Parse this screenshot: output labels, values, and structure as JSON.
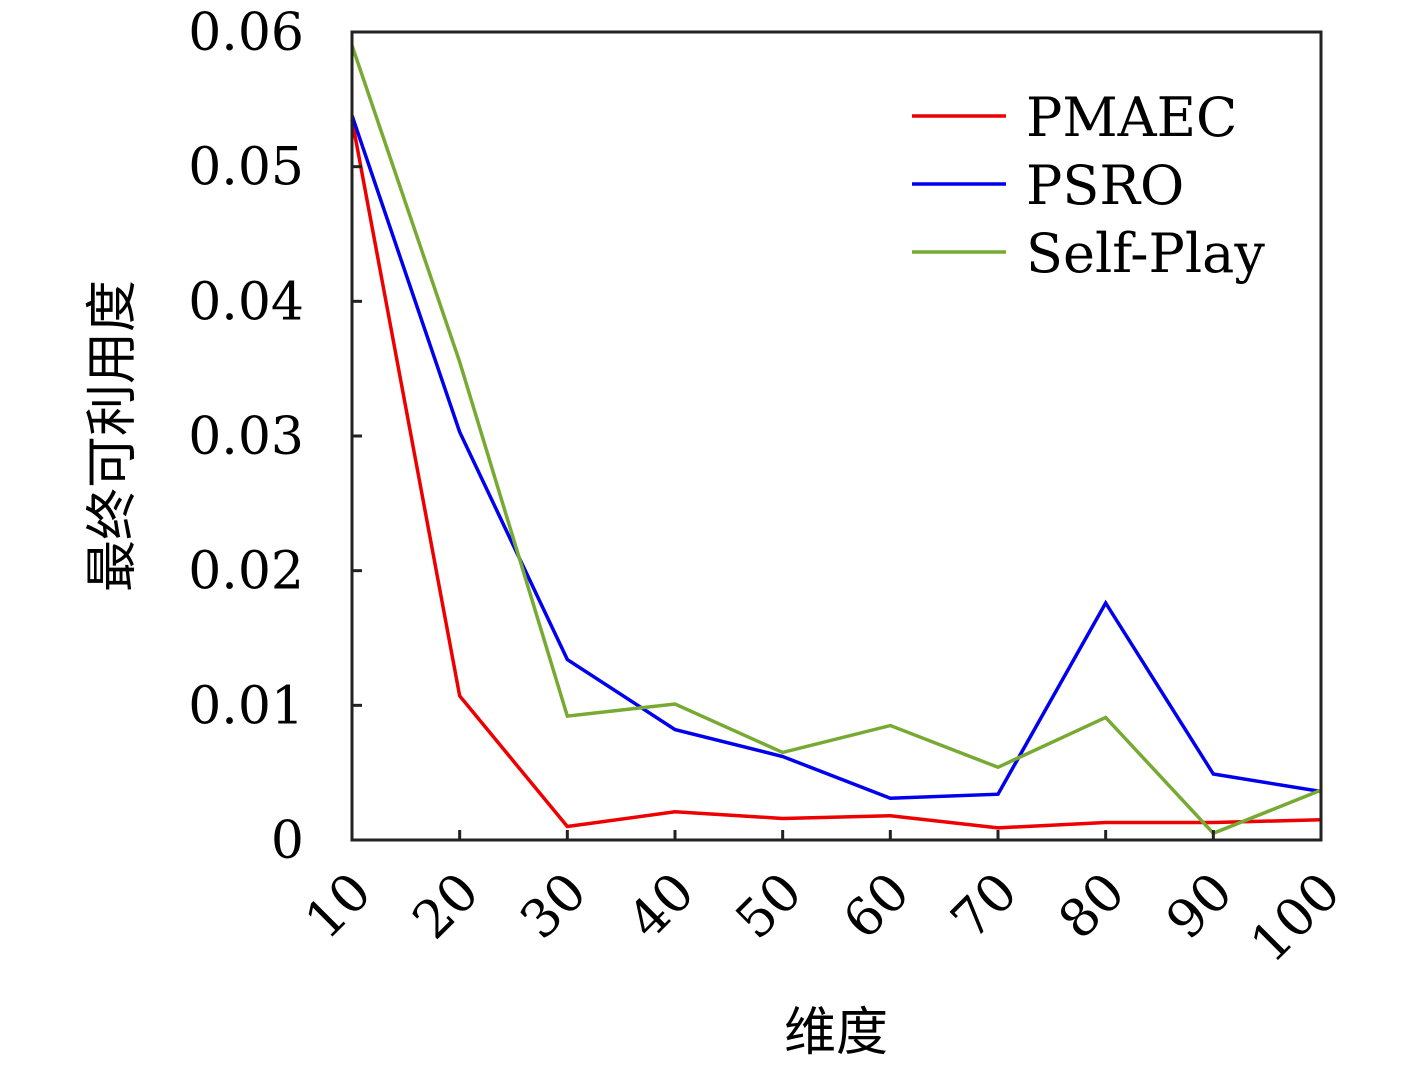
{
  "chart_data": {
    "type": "line",
    "title": "",
    "xlabel": "维度",
    "ylabel": "最终可利用度",
    "x": [
      10,
      20,
      30,
      40,
      50,
      60,
      70,
      80,
      90,
      100
    ],
    "x_tick_labels": [
      "10",
      "20",
      "30",
      "40",
      "50",
      "60",
      "70",
      "80",
      "90",
      "100"
    ],
    "xlim": [
      10,
      100
    ],
    "ylim": [
      0,
      0.06
    ],
    "y_ticks": [
      0,
      0.01,
      0.02,
      0.03,
      0.04,
      0.05,
      0.06
    ],
    "y_tick_labels": [
      "0",
      "0.01",
      "0.02",
      "0.03",
      "0.04",
      "0.05",
      "0.06"
    ],
    "grid": false,
    "legend_position": "top-right",
    "series": [
      {
        "name": "PMAEC",
        "color": "#ee0000",
        "values": [
          0.0535,
          0.0107,
          0.001,
          0.0021,
          0.0016,
          0.0018,
          0.0009,
          0.0013,
          0.0013,
          0.0015
        ]
      },
      {
        "name": "PSRO",
        "color": "#0000ee",
        "values": [
          0.0538,
          0.0303,
          0.0134,
          0.0082,
          0.0062,
          0.0031,
          0.0034,
          0.0176,
          0.0049,
          0.0036
        ]
      },
      {
        "name": "Self-Play",
        "color": "#77aa33",
        "values": [
          0.059,
          0.0355,
          0.0092,
          0.0101,
          0.0065,
          0.0085,
          0.0054,
          0.0091,
          0.0005,
          0.0037
        ]
      }
    ]
  }
}
